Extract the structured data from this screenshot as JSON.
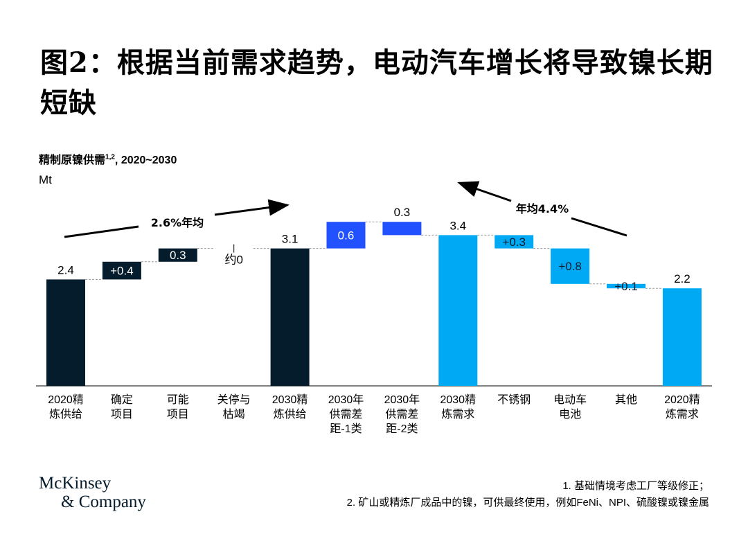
{
  "title": "图2：根据当前需求趋势，电动汽车增长将导致镍长期短缺",
  "subtitle": {
    "text": "精制原镍供需",
    "sup": "1,2",
    "range": ", 2020~2030"
  },
  "unit": "Mt",
  "colors": {
    "supply": "#051c2c",
    "gap": "#2251ff",
    "demand": "#00a9f4"
  },
  "chart_data": {
    "type": "bar",
    "subtype": "waterfall",
    "ylabel": "Mt",
    "ylim": [
      0,
      4
    ],
    "grid": false,
    "categories": [
      "2020精\n炼供给",
      "确定\n项目",
      "可能\n项目",
      "关停与\n枯竭",
      "2030精\n炼供给",
      "2030年\n供需差\n距-1类",
      "2030年\n供需差\n距-2类",
      "2030精\n炼需求",
      "不锈钢",
      "电动车\n电池",
      "其他",
      "2020精\n炼需求"
    ],
    "bars": [
      {
        "start": 0,
        "end": 2.4,
        "label": "2.4",
        "group": "supply",
        "label_position": "above"
      },
      {
        "start": 2.4,
        "end": 2.8,
        "label": "+0.4",
        "group": "supply",
        "label_position": "inside"
      },
      {
        "start": 2.8,
        "end": 3.1,
        "label": "0.3",
        "group": "supply",
        "label_position": "inside"
      },
      {
        "start": 3.1,
        "end": 3.1,
        "label": "约0",
        "group": "supply",
        "label_position": "below"
      },
      {
        "start": 0,
        "end": 3.1,
        "label": "3.1",
        "group": "supply",
        "label_position": "above"
      },
      {
        "start": 3.1,
        "end": 3.7,
        "label": "0.6",
        "group": "gap",
        "label_position": "inside"
      },
      {
        "start": 3.7,
        "end": 3.4,
        "label": "0.3",
        "group": "gap",
        "label_position": "above"
      },
      {
        "start": 0,
        "end": 3.4,
        "label": "3.4",
        "group": "demand",
        "label_position": "above"
      },
      {
        "start": 3.4,
        "end": 3.1,
        "label": "+0.3",
        "group": "demand",
        "label_position": "inside"
      },
      {
        "start": 3.1,
        "end": 2.3,
        "label": "+0.8",
        "group": "demand",
        "label_position": "inside"
      },
      {
        "start": 2.3,
        "end": 2.2,
        "label": "+0.1",
        "group": "demand",
        "label_position": "inside"
      },
      {
        "start": 0,
        "end": 2.2,
        "label": "2.2",
        "group": "demand",
        "label_position": "above"
      }
    ],
    "annotations": [
      "2.6%年均",
      "年均4.4%"
    ]
  },
  "logo": {
    "line1": "McKinsey",
    "line2": "& Company"
  },
  "footnotes": [
    "1.   基础情境考虑工厂等级修正；",
    "2.   矿山或精炼厂成品中的镍，可供最终使用，例如FeNi、NPI、硫酸镍或镍金属"
  ]
}
